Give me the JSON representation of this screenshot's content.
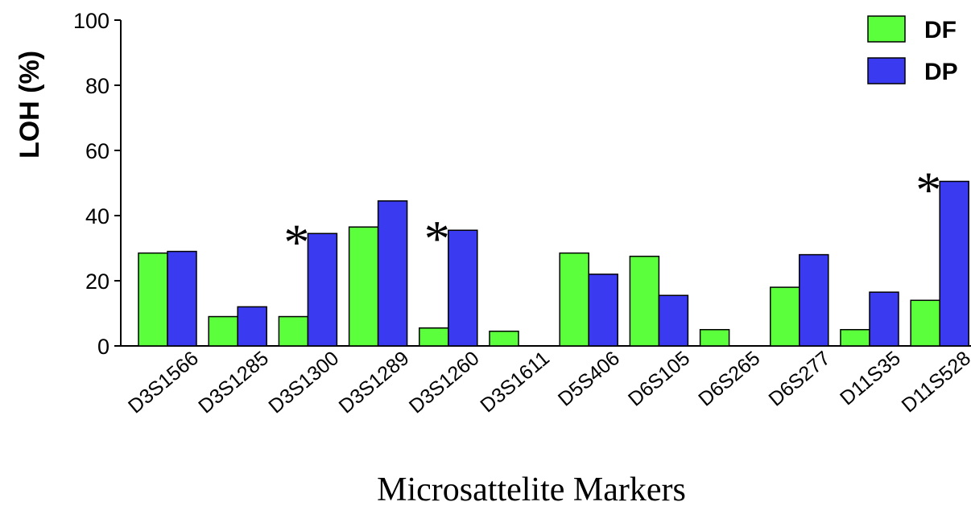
{
  "chart_data": {
    "type": "bar",
    "categories": [
      "D3S1566",
      "D3S1285",
      "D3S1300",
      "D3S1289",
      "D3S1260",
      "D3S1611",
      "D5S406",
      "D6S105",
      "D6S265",
      "D6S277",
      "D11S35",
      "D11S528"
    ],
    "series": [
      {
        "name": "DF",
        "color": "#5cff3c",
        "values": [
          28.5,
          9,
          9,
          36.5,
          5.5,
          4.5,
          28.5,
          27.5,
          5,
          18,
          5,
          14
        ]
      },
      {
        "name": "DP",
        "color": "#3a3af0",
        "values": [
          29,
          12,
          34.5,
          44.5,
          35.5,
          0,
          22,
          15.5,
          0,
          28,
          16.5,
          50.5
        ]
      }
    ],
    "ylabel": "LOH (%)",
    "xlabel": "Microsattelite Markers",
    "ylim": [
      0,
      100
    ],
    "yticks": [
      0,
      20,
      40,
      60,
      80,
      100
    ],
    "grid": false,
    "legend_position": "top-right",
    "annotations": [
      {
        "text": "*",
        "category": "D3S1300"
      },
      {
        "text": "*",
        "category": "D3S1260"
      },
      {
        "text": "*",
        "category": "D11S528"
      }
    ]
  }
}
